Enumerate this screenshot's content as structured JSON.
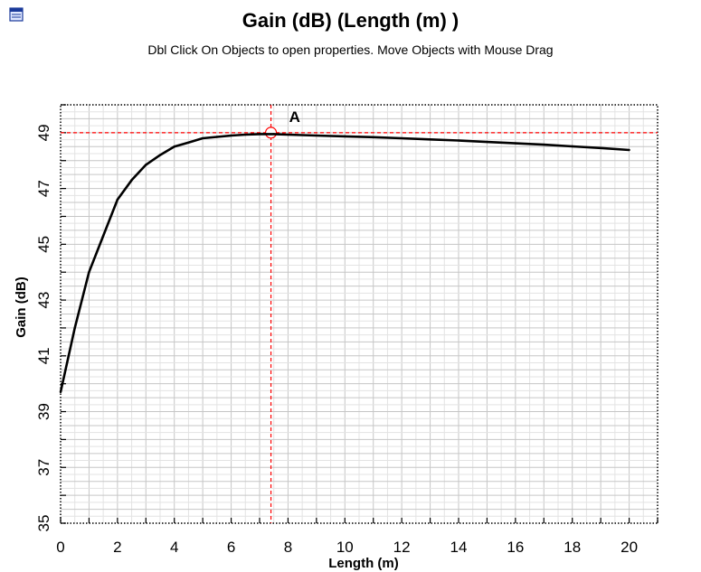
{
  "app": {
    "icon": "chart-window-icon"
  },
  "chart_data": {
    "type": "line",
    "title": "Gain (dB) (Length (m) )",
    "subtitle": "Dbl Click On Objects to open properties.  Move Objects with Mouse Drag",
    "xlabel": "Length (m)",
    "ylabel": "Gain  (dB)",
    "xlim": [
      0,
      21
    ],
    "ylim": [
      35,
      50
    ],
    "x_ticks": [
      "0",
      "2",
      "4",
      "6",
      "8",
      "10",
      "12",
      "14",
      "16",
      "18",
      "20"
    ],
    "x_tick_values": [
      0,
      2,
      4,
      6,
      8,
      10,
      12,
      14,
      16,
      18,
      20
    ],
    "y_ticks": [
      "35",
      "37",
      "39",
      "41",
      "43",
      "45",
      "47",
      "49"
    ],
    "y_tick_values": [
      35,
      37,
      39,
      41,
      43,
      45,
      47,
      49
    ],
    "grid": true,
    "series": [
      {
        "color": "#000000",
        "x": [
          0,
          0.5,
          1,
          1.5,
          2,
          2.5,
          3,
          3.5,
          4,
          4.5,
          5,
          5.5,
          6,
          6.5,
          7,
          7.5,
          8,
          9,
          10,
          11,
          12,
          13,
          14,
          15,
          16,
          17,
          18,
          19,
          20
        ],
        "y": [
          39.7,
          42.0,
          44.0,
          45.3,
          46.6,
          47.3,
          47.85,
          48.2,
          48.5,
          48.65,
          48.8,
          48.85,
          48.9,
          48.93,
          48.95,
          48.95,
          48.93,
          48.9,
          48.87,
          48.84,
          48.8,
          48.76,
          48.72,
          48.67,
          48.62,
          48.57,
          48.51,
          48.45,
          48.38
        ]
      }
    ],
    "markers": [
      {
        "label": "A",
        "x": 7.4,
        "y": 49.0,
        "color": "#ff0000"
      }
    ]
  }
}
